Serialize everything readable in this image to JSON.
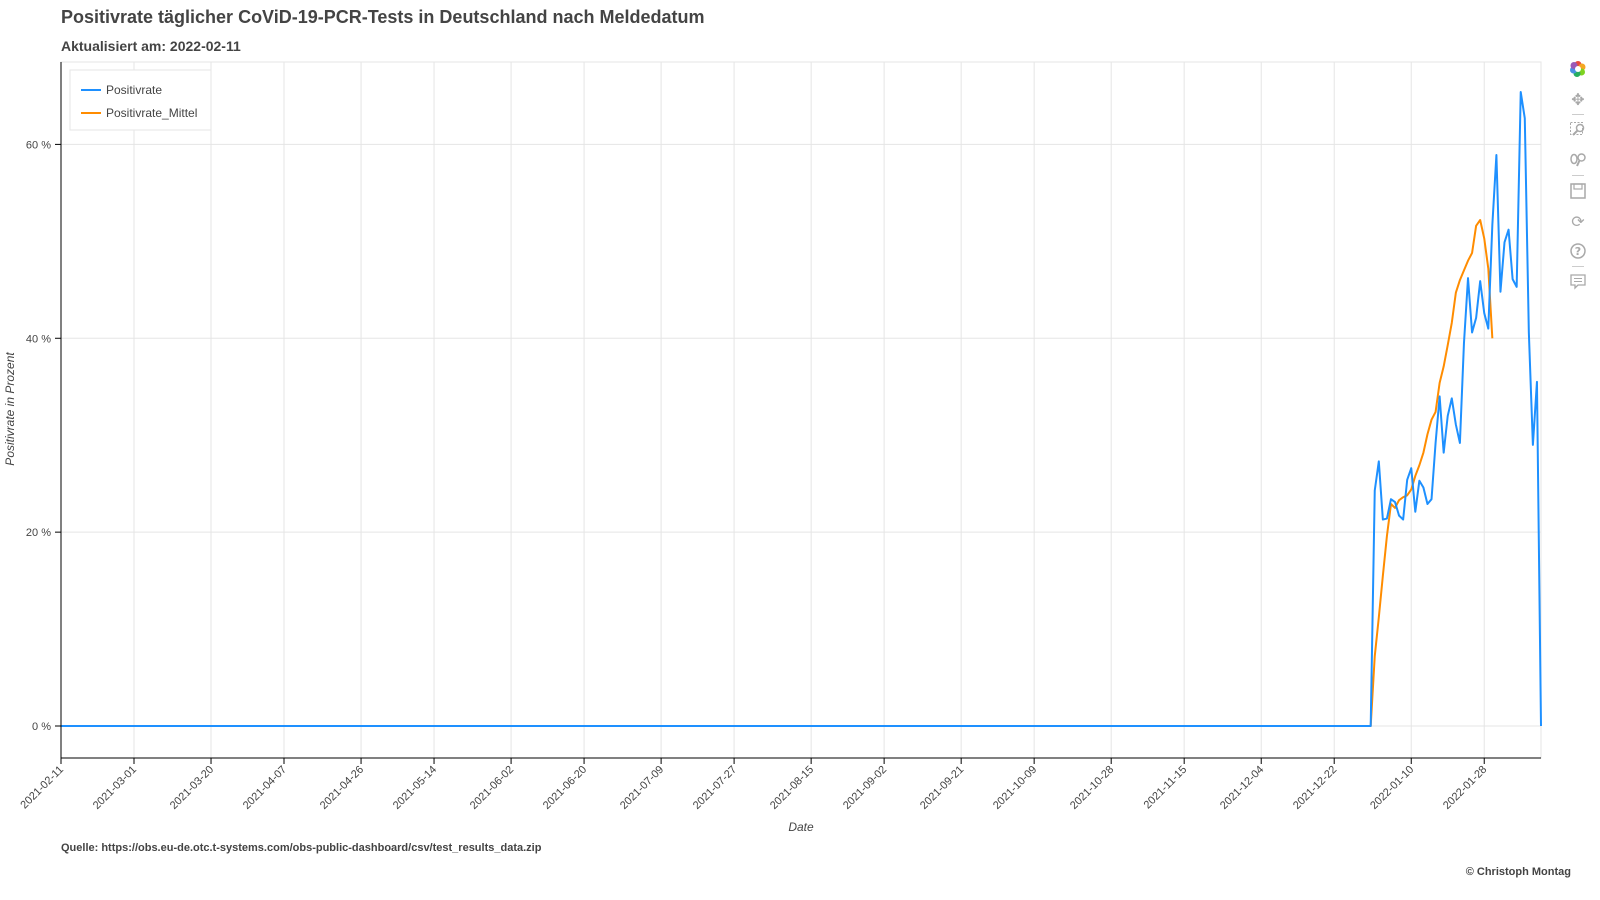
{
  "header": {
    "title": "Positivrate täglicher CoViD-19-PCR-Tests in Deutschland nach Meldedatum",
    "subtitle": "Aktualisiert am: 2022-02-11"
  },
  "footer": {
    "source": "Quelle: https://obs.eu-de.otc.t-systems.com/obs-public-dashboard/csv/test_results_data.zip",
    "copyright": "© Christoph Montag"
  },
  "toolbar": {
    "icons": [
      "bokeh-logo-icon",
      "pan-icon",
      "box-zoom-icon",
      "wheel-zoom-icon",
      "save-icon",
      "reset-icon",
      "help-icon",
      "hover-icon"
    ]
  },
  "chart_data": {
    "type": "line",
    "title": "Positivrate täglicher CoViD-19-PCR-Tests in Deutschland nach Meldedatum",
    "subtitle": "Aktualisiert am: 2022-02-11",
    "xlabel": "Date",
    "ylabel": "Positivrate in Prozent",
    "xlim": [
      "2021-02-11",
      "2022-02-11"
    ],
    "ylim": [
      -3.3,
      68.5
    ],
    "x_ticks": [
      "2021-02-11",
      "2021-03-01",
      "2021-03-20",
      "2021-04-07",
      "2021-04-26",
      "2021-05-14",
      "2021-06-02",
      "2021-06-20",
      "2021-07-09",
      "2021-07-27",
      "2021-08-15",
      "2021-09-02",
      "2021-09-21",
      "2021-10-09",
      "2021-10-28",
      "2021-11-15",
      "2021-12-04",
      "2021-12-22",
      "2022-01-10",
      "2022-01-28"
    ],
    "y_ticks": [
      0,
      20,
      40,
      60
    ],
    "y_tick_labels": [
      "0 %",
      "20 %",
      "40 %",
      "60 %"
    ],
    "grid": true,
    "legend_position": "top-left",
    "colors": {
      "Positivrate": "#1e90ff",
      "Positivrate_Mittel": "#ff8c00"
    },
    "series": [
      {
        "name": "Positivrate",
        "points": [
          [
            "2021-02-11",
            0
          ],
          [
            "2021-12-31",
            0
          ],
          [
            "2022-01-01",
            24.3
          ],
          [
            "2022-01-02",
            27.3
          ],
          [
            "2022-01-03",
            21.3
          ],
          [
            "2022-01-04",
            21.4
          ],
          [
            "2022-01-05",
            23.4
          ],
          [
            "2022-01-06",
            23.1
          ],
          [
            "2022-01-07",
            21.7
          ],
          [
            "2022-01-08",
            21.3
          ],
          [
            "2022-01-09",
            25.4
          ],
          [
            "2022-01-10",
            26.6
          ],
          [
            "2022-01-11",
            22.1
          ],
          [
            "2022-01-12",
            25.3
          ],
          [
            "2022-01-13",
            24.6
          ],
          [
            "2022-01-14",
            22.9
          ],
          [
            "2022-01-15",
            23.4
          ],
          [
            "2022-01-16",
            29.2
          ],
          [
            "2022-01-17",
            34.0
          ],
          [
            "2022-01-18",
            28.2
          ],
          [
            "2022-01-19",
            32.0
          ],
          [
            "2022-01-20",
            33.8
          ],
          [
            "2022-01-21",
            31.1
          ],
          [
            "2022-01-22",
            29.2
          ],
          [
            "2022-01-23",
            39.5
          ],
          [
            "2022-01-24",
            46.2
          ],
          [
            "2022-01-25",
            40.6
          ],
          [
            "2022-01-26",
            42.1
          ],
          [
            "2022-01-27",
            45.9
          ],
          [
            "2022-01-28",
            42.6
          ],
          [
            "2022-01-29",
            41.0
          ],
          [
            "2022-01-30",
            51.7
          ],
          [
            "2022-01-31",
            58.9
          ],
          [
            "2022-02-01",
            44.8
          ],
          [
            "2022-02-02",
            49.9
          ],
          [
            "2022-02-03",
            51.2
          ],
          [
            "2022-02-04",
            46.1
          ],
          [
            "2022-02-05",
            45.3
          ],
          [
            "2022-02-06",
            65.4
          ],
          [
            "2022-02-07",
            62.7
          ],
          [
            "2022-02-08",
            40.6
          ],
          [
            "2022-02-09",
            29.0
          ],
          [
            "2022-02-10",
            35.5
          ],
          [
            "2022-02-11",
            0
          ]
        ]
      },
      {
        "name": "Positivrate_Mittel",
        "points": [
          [
            "2021-02-11",
            0
          ],
          [
            "2021-12-31",
            0
          ],
          [
            "2022-01-01",
            7.2
          ],
          [
            "2022-01-02",
            11.2
          ],
          [
            "2022-01-03",
            15.5
          ],
          [
            "2022-01-04",
            19.6
          ],
          [
            "2022-01-05",
            22.9
          ],
          [
            "2022-01-06",
            22.5
          ],
          [
            "2022-01-07",
            23.3
          ],
          [
            "2022-01-08",
            23.6
          ],
          [
            "2022-01-09",
            23.8
          ],
          [
            "2022-01-10",
            24.4
          ],
          [
            "2022-01-11",
            25.8
          ],
          [
            "2022-01-12",
            26.9
          ],
          [
            "2022-01-13",
            28.2
          ],
          [
            "2022-01-14",
            30.1
          ],
          [
            "2022-01-15",
            31.6
          ],
          [
            "2022-01-16",
            32.4
          ],
          [
            "2022-01-17",
            35.4
          ],
          [
            "2022-01-18",
            37.1
          ],
          [
            "2022-01-19",
            39.3
          ],
          [
            "2022-01-20",
            41.6
          ],
          [
            "2022-01-21",
            44.7
          ],
          [
            "2022-01-22",
            46.0
          ],
          [
            "2022-01-23",
            47.0
          ],
          [
            "2022-01-24",
            48.0
          ],
          [
            "2022-01-25",
            48.8
          ],
          [
            "2022-01-26",
            51.6
          ],
          [
            "2022-01-27",
            52.2
          ],
          [
            "2022-01-28",
            50.3
          ],
          [
            "2022-01-29",
            47.2
          ],
          [
            "2022-01-30",
            40.0
          ]
        ]
      }
    ]
  }
}
